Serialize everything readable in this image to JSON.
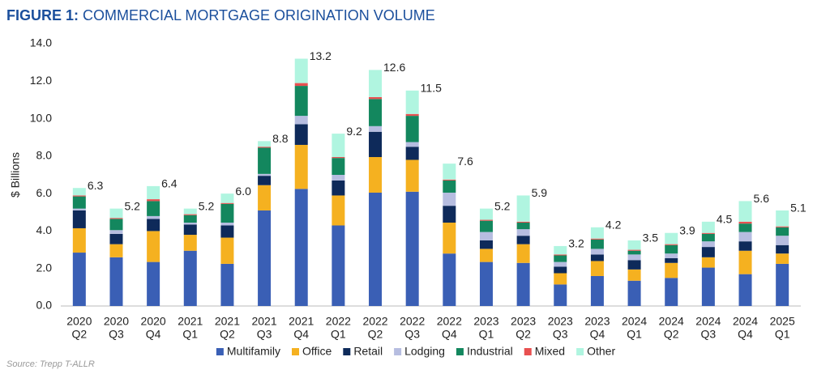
{
  "chart_data": {
    "type": "stacked_bar",
    "title_prefix": "FIGURE 1:",
    "title": "COMMERCIAL MORTGAGE ORIGINATION VOLUME",
    "y_label": "$ Billions",
    "source": "Source: Trepp T-ALLR",
    "categories": [
      [
        "2020",
        "Q2"
      ],
      [
        "2020",
        "Q3"
      ],
      [
        "2020",
        "Q4"
      ],
      [
        "2021",
        "Q1"
      ],
      [
        "2021",
        "Q2"
      ],
      [
        "2021",
        "Q3"
      ],
      [
        "2021",
        "Q4"
      ],
      [
        "2022",
        "Q1"
      ],
      [
        "2022",
        "Q2"
      ],
      [
        "2022",
        "Q3"
      ],
      [
        "2022",
        "Q4"
      ],
      [
        "2023",
        "Q1"
      ],
      [
        "2023",
        "Q2"
      ],
      [
        "2023",
        "Q3"
      ],
      [
        "2023",
        "Q4"
      ],
      [
        "2024",
        "Q1"
      ],
      [
        "2024",
        "Q2"
      ],
      [
        "2024",
        "Q3"
      ],
      [
        "2024",
        "Q4"
      ],
      [
        "2025",
        "Q1"
      ]
    ],
    "ylim": [
      0,
      14
    ],
    "yticks": [
      {
        "value": 0,
        "label": "0.0"
      },
      {
        "value": 2,
        "label": "2.0"
      },
      {
        "value": 4,
        "label": "4.0"
      },
      {
        "value": 6,
        "label": "6.0"
      },
      {
        "value": 8,
        "label": "8.0"
      },
      {
        "value": 10,
        "label": "10.0"
      },
      {
        "value": 12,
        "label": "12.0"
      },
      {
        "value": 14,
        "label": "14.0"
      }
    ],
    "series": [
      {
        "name": "Multifamily",
        "color": "#3a5fb5",
        "values": [
          2.85,
          2.6,
          2.35,
          2.95,
          2.25,
          5.1,
          6.25,
          4.3,
          6.05,
          6.1,
          2.8,
          2.35,
          2.3,
          1.15,
          1.6,
          1.35,
          1.5,
          2.05,
          1.7,
          2.25
        ]
      },
      {
        "name": "Office",
        "color": "#f5b120",
        "values": [
          1.3,
          0.7,
          1.65,
          0.85,
          1.4,
          1.35,
          2.35,
          1.6,
          1.9,
          1.7,
          1.65,
          0.7,
          1.0,
          0.6,
          0.8,
          0.6,
          0.8,
          0.55,
          1.25,
          0.55
        ]
      },
      {
        "name": "Retail",
        "color": "#0e2a5a",
        "values": [
          0.95,
          0.55,
          0.65,
          0.55,
          0.65,
          0.5,
          1.1,
          0.8,
          1.35,
          0.7,
          0.9,
          0.45,
          0.45,
          0.35,
          0.35,
          0.5,
          0.25,
          0.55,
          0.5,
          0.45
        ]
      },
      {
        "name": "Lodging",
        "color": "#b6bde0",
        "values": [
          0.1,
          0.2,
          0.15,
          0.1,
          0.15,
          0.1,
          0.45,
          0.3,
          0.3,
          0.25,
          0.7,
          0.45,
          0.35,
          0.25,
          0.3,
          0.3,
          0.25,
          0.3,
          0.5,
          0.5
        ]
      },
      {
        "name": "Industrial",
        "color": "#13875e",
        "values": [
          0.65,
          0.6,
          0.8,
          0.4,
          1.0,
          1.4,
          1.6,
          0.9,
          1.45,
          1.4,
          0.65,
          0.6,
          0.35,
          0.35,
          0.5,
          0.2,
          0.45,
          0.4,
          0.45,
          0.45
        ]
      },
      {
        "name": "Mixed",
        "color": "#e85050",
        "values": [
          0.05,
          0.05,
          0.1,
          0.05,
          0.05,
          0.05,
          0.15,
          0.05,
          0.1,
          0.1,
          0.05,
          0.05,
          0.05,
          0.05,
          0.05,
          0.05,
          0.05,
          0.05,
          0.1,
          0.05
        ]
      },
      {
        "name": "Other",
        "color": "#b0f5e0",
        "values": [
          0.4,
          0.5,
          0.7,
          0.3,
          0.5,
          0.3,
          1.3,
          1.25,
          1.45,
          1.25,
          0.85,
          0.6,
          1.4,
          0.45,
          0.6,
          0.5,
          0.6,
          0.6,
          1.1,
          0.85
        ]
      }
    ],
    "totals": {
      "values": [
        6.3,
        5.2,
        6.4,
        5.2,
        6.0,
        8.8,
        13.2,
        9.2,
        12.6,
        11.5,
        7.6,
        5.2,
        5.9,
        3.2,
        4.2,
        3.5,
        3.9,
        4.5,
        5.6,
        5.1
      ],
      "value_labels": [
        "6.3",
        "5.2",
        "6.4",
        "5.2",
        "6.0",
        "8.8",
        "13.2",
        "9.2",
        "12.6",
        "11.5",
        "7.6",
        "5.2",
        "5.9",
        "3.2",
        "4.2",
        "3.5",
        "3.9",
        "4.5",
        "5.6",
        "5.1"
      ]
    }
  }
}
